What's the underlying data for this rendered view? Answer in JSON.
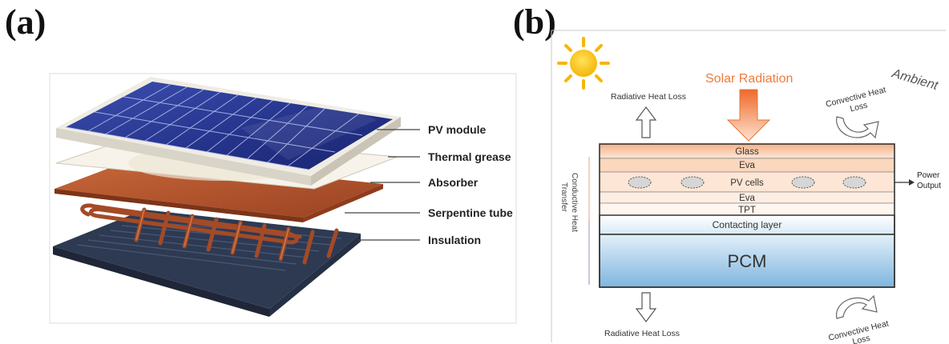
{
  "panel_a": {
    "label": "(a)",
    "layers": [
      {
        "name": "PV module"
      },
      {
        "name": "Thermal grease"
      },
      {
        "name": "Absorber"
      },
      {
        "name": "Serpentine tube"
      },
      {
        "name": "Insulation"
      }
    ]
  },
  "panel_b": {
    "label": "(b)",
    "ambient": "Ambient",
    "solar_radiation": "Solar Radiation",
    "radiative_top": "Radiative Heat Loss",
    "radiative_bottom": "Radiative Heat Loss",
    "convective_top": [
      "Convective Heat",
      "Loss"
    ],
    "convective_bottom": [
      "Convective Heat",
      "Loss"
    ],
    "conductive": [
      "Conductive Heat",
      "Transfer"
    ],
    "power_output": [
      "Power",
      "Output"
    ],
    "stack": {
      "glass": "Glass",
      "eva_top": "Eva",
      "pv_cells": "PV cells",
      "eva_bottom": "Eva",
      "tpt": "TPT",
      "contacting": "Contacting layer",
      "pcm": "PCM"
    }
  },
  "colors": {
    "panel_blue": "#2a3a8c",
    "copper": "#b8552c",
    "insulation": "#2e3a52",
    "glass_orange": "#f3b98e",
    "pcm_blue": "#8ec0e2",
    "solar_orange": "#f07a3a"
  },
  "icons": [
    "sun-icon",
    "radiative-up-arrow-icon",
    "solar-arrow-icon",
    "convective-circular-arrow-icon",
    "radiative-down-arrow-icon",
    "power-output-arrow-icon"
  ]
}
